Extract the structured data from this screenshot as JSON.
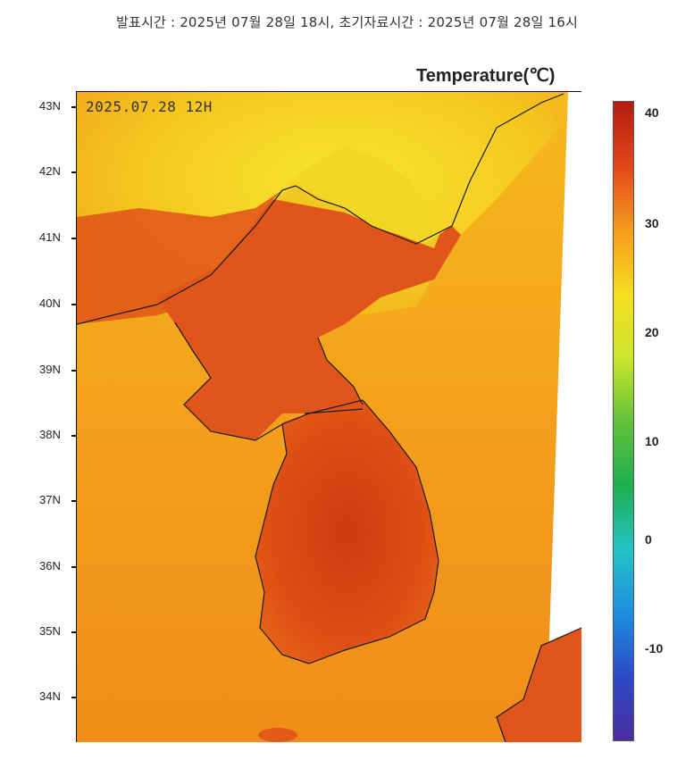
{
  "header": {
    "text": "발표시간 : 2025년 07월 28일 18시, 초기자료시간 : 2025년 07월 28일 16시"
  },
  "map": {
    "legend_title": "Temperature(℃)",
    "timestamp": "2025.07.28 12H",
    "latitude_labels": [
      "43N",
      "42N",
      "41N",
      "40N",
      "39N",
      "38N",
      "37N",
      "36N",
      "35N",
      "34N"
    ],
    "colors": {
      "background_field": "#f5b21a",
      "land_hot": "#d9410f",
      "land_mid": "#e8621c",
      "sea_warm": "#f39a1d",
      "mountain_cool": "#f5e12b",
      "coastline": "#1a1a1a"
    }
  },
  "colorbar": {
    "labels": [
      "40",
      "30",
      "20",
      "10",
      "0",
      "-10"
    ],
    "min": -20,
    "max": 42,
    "gradient": [
      "#b41d10",
      "#e2451b",
      "#f79a1e",
      "#f6dd1f",
      "#cde62c",
      "#62c23a",
      "#1fae4e",
      "#23c3c4",
      "#1d8fe0",
      "#2c49c6",
      "#4b2ea0"
    ]
  }
}
